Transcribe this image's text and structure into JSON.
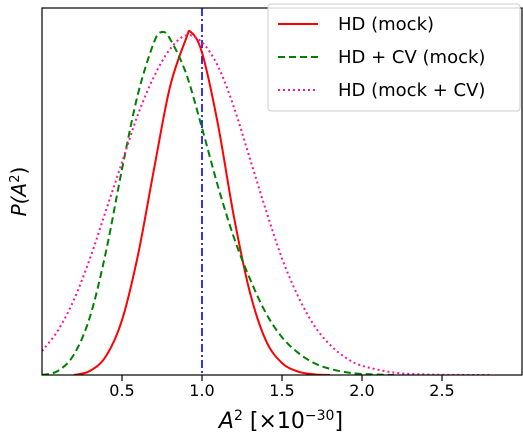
{
  "chart_data": {
    "type": "line",
    "xlabel": {
      "base": "A",
      "sup": "2",
      "rest": " [×10",
      "exp": "−30",
      "close": "]"
    },
    "ylabel": {
      "prefix": "P(A",
      "sup": "2",
      "suffix": ")"
    },
    "xlim": [
      0.0,
      3.0
    ],
    "ylim": [
      0.0,
      1.07
    ],
    "xticks": [
      0.5,
      1.0,
      1.5,
      2.0,
      2.5
    ],
    "xtick_labels": [
      "0.5",
      "1.0",
      "1.5",
      "2.0",
      "2.5"
    ],
    "y_ticks_labeled": false,
    "grid": false,
    "legend_position": "top-right",
    "vline": {
      "x": 1.0,
      "color": "#0000ff",
      "style": "dash-dot"
    },
    "series": [
      {
        "name": "HD (mock)",
        "color": "#ff0000",
        "style": "solid",
        "x": [
          0.2,
          0.3,
          0.4,
          0.5,
          0.6,
          0.7,
          0.8,
          0.9,
          0.93,
          1.0,
          1.1,
          1.2,
          1.3,
          1.4,
          1.5,
          1.6,
          1.7,
          1.8
        ],
        "y": [
          0.0,
          0.012,
          0.055,
          0.16,
          0.35,
          0.6,
          0.84,
          0.98,
          1.0,
          0.94,
          0.73,
          0.46,
          0.24,
          0.1,
          0.035,
          0.01,
          0.002,
          0.0
        ]
      },
      {
        "name": "HD + CV (mock)",
        "color": "#008000",
        "style": "dashed",
        "x": [
          0.0,
          0.1,
          0.2,
          0.3,
          0.4,
          0.5,
          0.6,
          0.7,
          0.75,
          0.8,
          0.9,
          1.0,
          1.1,
          1.2,
          1.3,
          1.4,
          1.5,
          1.6,
          1.7,
          1.8,
          1.9,
          2.0,
          2.2
        ],
        "y": [
          0.0,
          0.012,
          0.06,
          0.17,
          0.36,
          0.6,
          0.82,
          0.97,
          1.0,
          0.98,
          0.88,
          0.72,
          0.55,
          0.4,
          0.28,
          0.18,
          0.11,
          0.065,
          0.035,
          0.018,
          0.008,
          0.003,
          0.0
        ]
      },
      {
        "name": "HD (mock + CV)",
        "color": "#ff1493",
        "style": "dotted",
        "x": [
          0.0,
          0.1,
          0.2,
          0.3,
          0.4,
          0.5,
          0.6,
          0.7,
          0.8,
          0.9,
          1.0,
          1.1,
          1.2,
          1.3,
          1.4,
          1.5,
          1.6,
          1.7,
          1.8,
          1.9,
          2.0,
          2.2,
          2.4,
          2.6,
          2.8
        ],
        "y": [
          0.07,
          0.13,
          0.22,
          0.34,
          0.48,
          0.62,
          0.76,
          0.87,
          0.95,
          0.99,
          0.97,
          0.9,
          0.78,
          0.63,
          0.48,
          0.34,
          0.23,
          0.145,
          0.088,
          0.05,
          0.027,
          0.007,
          0.0015,
          0.0002,
          0.0
        ]
      }
    ]
  }
}
